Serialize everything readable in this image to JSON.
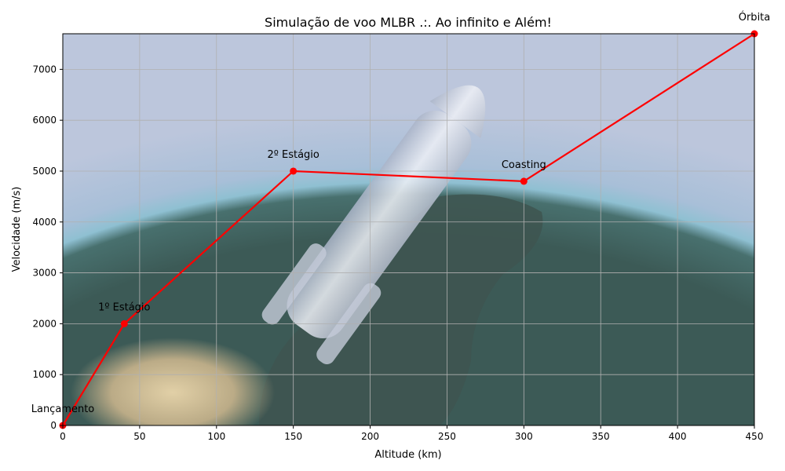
{
  "chart_data": {
    "type": "line",
    "title": "Simulação de voo MLBR .:. Ao infinito e Além!",
    "xlabel": "Altitude (km)",
    "ylabel": "Velocidade (m/s)",
    "xlim": [
      0,
      450
    ],
    "ylim": [
      0,
      7700
    ],
    "xticks": [
      0,
      50,
      100,
      150,
      200,
      250,
      300,
      350,
      400,
      450
    ],
    "yticks": [
      0,
      1000,
      2000,
      3000,
      4000,
      5000,
      6000,
      7000
    ],
    "grid": true,
    "background": "photo of Earth from orbit with a rocket (semi-transparent)",
    "series": [
      {
        "color": "#ff0000",
        "marker": "circle",
        "x": [
          0,
          40,
          150,
          300,
          450
        ],
        "y": [
          0,
          2000,
          5000,
          4800,
          7700
        ]
      }
    ],
    "annotations": [
      {
        "label": "Lançamento",
        "x": 0,
        "y": 0
      },
      {
        "label": "1º Estágio",
        "x": 40,
        "y": 2000
      },
      {
        "label": "2º Estágio",
        "x": 150,
        "y": 5000
      },
      {
        "label": "Coasting",
        "x": 300,
        "y": 4800
      },
      {
        "label": "Órbita",
        "x": 450,
        "y": 7700
      }
    ]
  }
}
